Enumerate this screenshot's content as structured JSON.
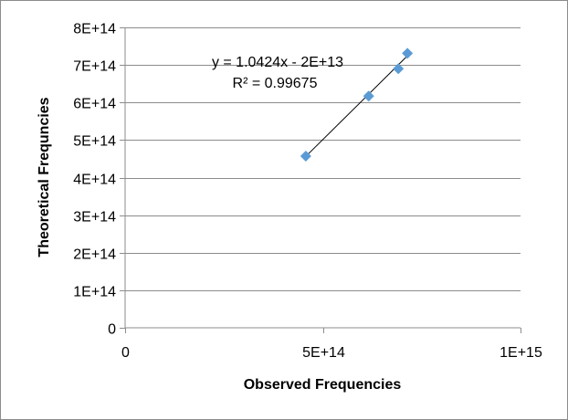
{
  "chart_data": {
    "type": "scatter",
    "xlabel": "Observed Frequencies",
    "ylabel": "Theoretical Frequncies",
    "xlim": [
      0,
      1000000000000000
    ],
    "ylim": [
      0,
      800000000000000
    ],
    "x_ticks": [
      {
        "value": 0,
        "label": "0"
      },
      {
        "value": 500000000000000,
        "label": "5E+14"
      },
      {
        "value": 1000000000000000,
        "label": "1E+15"
      }
    ],
    "y_ticks": [
      {
        "value": 0,
        "label": "0"
      },
      {
        "value": 100000000000000,
        "label": "1E+14"
      },
      {
        "value": 200000000000000,
        "label": "2E+14"
      },
      {
        "value": 300000000000000,
        "label": "3E+14"
      },
      {
        "value": 400000000000000,
        "label": "4E+14"
      },
      {
        "value": 500000000000000,
        "label": "5E+14"
      },
      {
        "value": 600000000000000,
        "label": "6E+14"
      },
      {
        "value": 700000000000000,
        "label": "7E+14"
      },
      {
        "value": 800000000000000,
        "label": "8E+14"
      }
    ],
    "grid": "horizontal",
    "legend": "none",
    "marker": "diamond",
    "marker_color": "#5b9bd5",
    "series": [
      {
        "x": [
          457000000000000,
          616000000000000,
          691000000000000,
          714000000000000
        ],
        "y": [
          457000000000000,
          617000000000000,
          690000000000000,
          731000000000000
        ]
      }
    ],
    "trendline": {
      "slope": 1.0424,
      "intercept": -20000000000000,
      "x_from": 457000000000000,
      "x_to": 714000000000000,
      "color": "#000000"
    },
    "annotations": {
      "equation": "y = 1.0424x - 2E+13",
      "r_squared": "R² = 0.99675"
    }
  }
}
